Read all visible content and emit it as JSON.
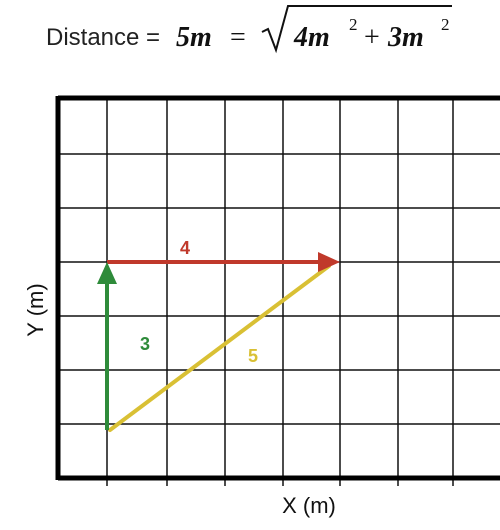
{
  "equation": {
    "prefix": "Distance =",
    "result": "5m",
    "equals": "=",
    "term1": "4m",
    "plus": "+",
    "term2": "3m",
    "exponent1": "2",
    "exponent2": "2"
  },
  "axes": {
    "x_label": "X (m)",
    "y_label": "Y (m)"
  },
  "vectors": {
    "horizontal": {
      "label": "4",
      "color": "#c0392b"
    },
    "vertical": {
      "label": "3",
      "color": "#2e8b3a"
    },
    "hypotenuse": {
      "label": "5",
      "color": "#d9c034"
    }
  },
  "colors": {
    "grid": "#111111",
    "border": "#000000"
  }
}
